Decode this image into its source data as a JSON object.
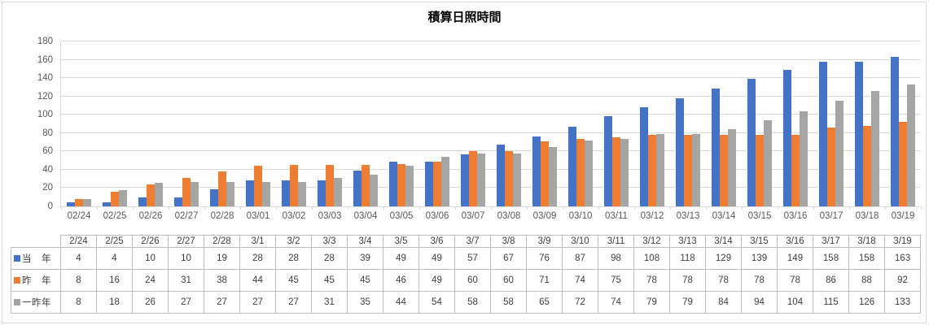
{
  "title": "積算日照時間",
  "colors": {
    "series_tonen": "#4472C4",
    "series_sakunen": "#ED7D31",
    "series_issakunen": "#A5A5A5",
    "gridline": "#D9D9D9",
    "axis_text": "#595959",
    "table_border": "#BFBFBF",
    "table_text": "#404040"
  },
  "chart_data": {
    "type": "bar",
    "title": "積算日照時間",
    "xlabel": "",
    "ylabel": "",
    "ylim": [
      0,
      180
    ],
    "yticks": [
      0,
      20,
      40,
      60,
      80,
      100,
      120,
      140,
      160,
      180
    ],
    "grid": true,
    "legend_position": "data-table-left",
    "categories_axis": [
      "02/24",
      "02/25",
      "02/26",
      "02/27",
      "02/28",
      "03/01",
      "03/02",
      "03/03",
      "03/04",
      "03/05",
      "03/06",
      "03/07",
      "03/08",
      "03/09",
      "03/10",
      "03/11",
      "03/12",
      "03/13",
      "03/14",
      "03/15",
      "03/16",
      "03/17",
      "03/18",
      "03/19"
    ],
    "categories_table": [
      "2/24",
      "2/25",
      "2/26",
      "2/27",
      "2/28",
      "3/1",
      "3/2",
      "3/3",
      "3/4",
      "3/5",
      "3/6",
      "3/7",
      "3/8",
      "3/9",
      "3/10",
      "3/11",
      "3/12",
      "3/13",
      "3/14",
      "3/15",
      "3/16",
      "3/17",
      "3/18",
      "3/19"
    ],
    "series": [
      {
        "name": "当　年",
        "color": "#4472C4",
        "values": [
          4,
          4,
          10,
          10,
          19,
          28,
          28,
          28,
          39,
          49,
          49,
          57,
          67,
          76,
          87,
          98,
          108,
          118,
          129,
          139,
          149,
          158,
          158,
          163
        ]
      },
      {
        "name": "昨　年",
        "color": "#ED7D31",
        "values": [
          8,
          16,
          24,
          31,
          38,
          44,
          45,
          45,
          45,
          46,
          49,
          60,
          60,
          71,
          74,
          75,
          78,
          78,
          78,
          78,
          78,
          86,
          88,
          92
        ]
      },
      {
        "name": "一昨年",
        "color": "#A5A5A5",
        "values": [
          8,
          18,
          26,
          27,
          27,
          27,
          27,
          31,
          35,
          44,
          54,
          58,
          58,
          65,
          72,
          74,
          79,
          79,
          84,
          94,
          104,
          115,
          126,
          133
        ]
      }
    ]
  }
}
